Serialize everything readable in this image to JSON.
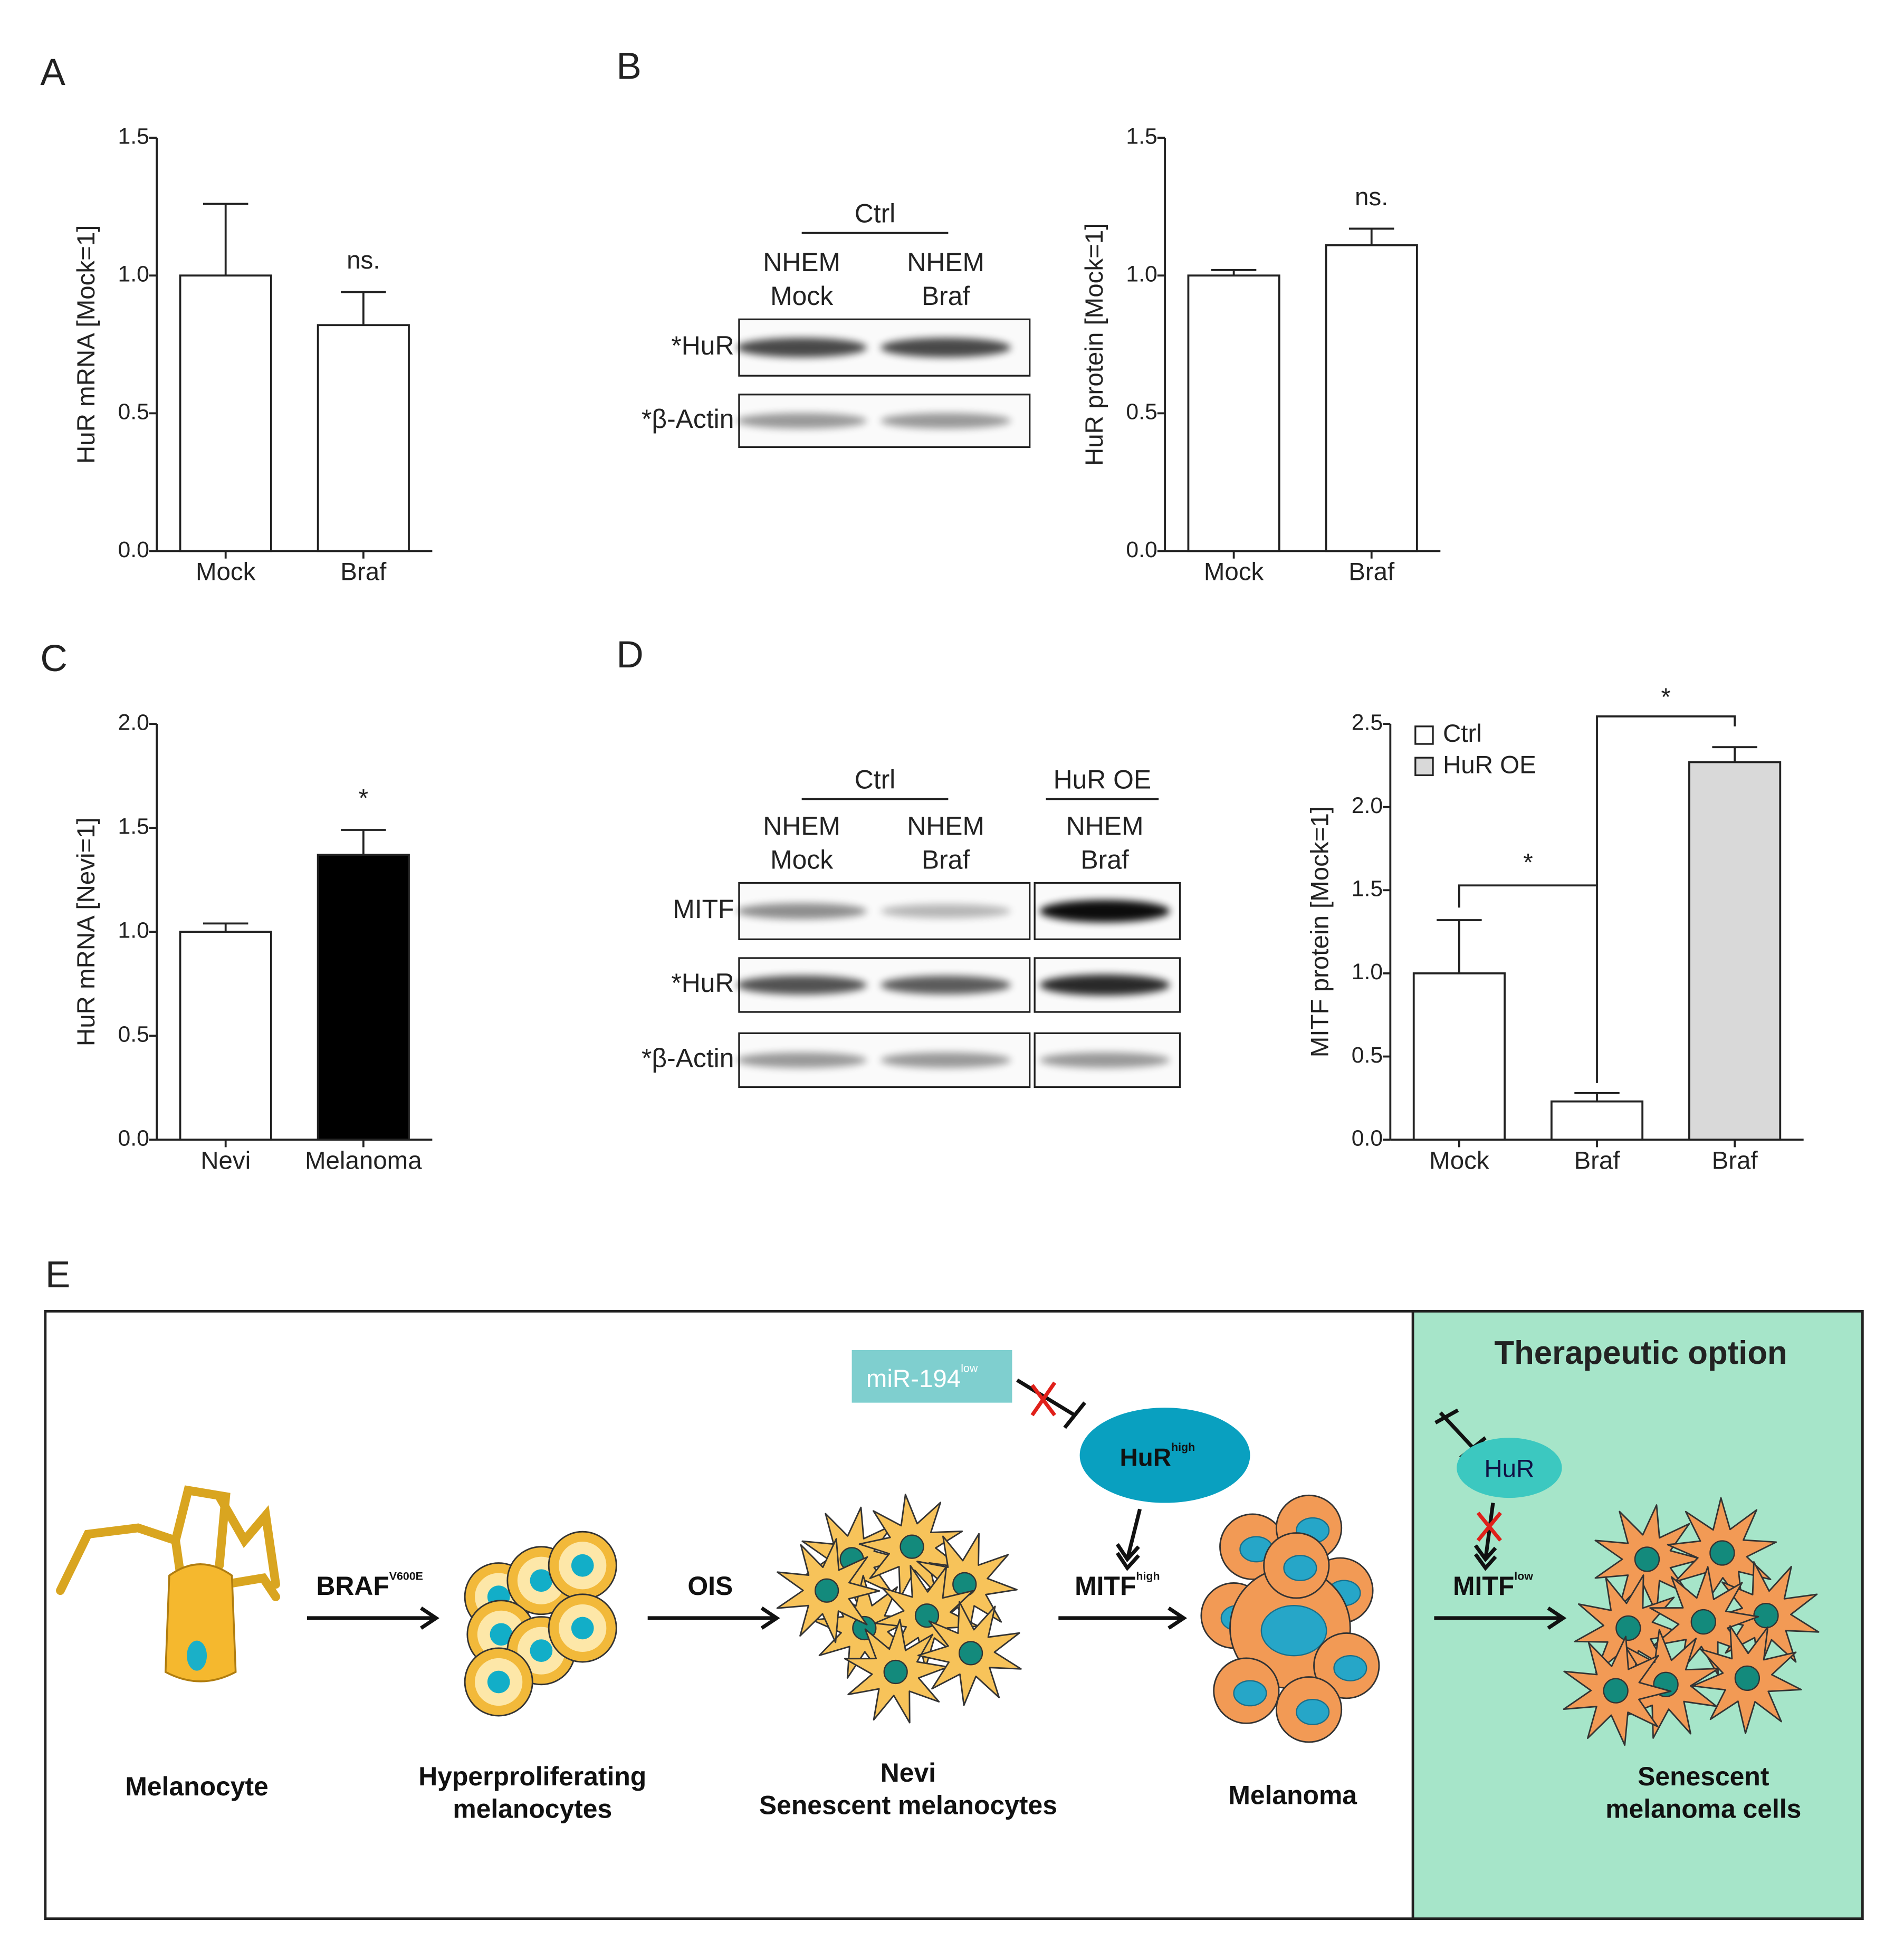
{
  "panels": [
    "A",
    "B",
    "C",
    "D",
    "E"
  ],
  "chart_data": [
    {
      "type": "bar",
      "y_label": "HuR mRNA [Mock=1]",
      "categories": [
        "Mock",
        "Braf"
      ],
      "values": [
        1.0,
        0.82
      ],
      "errors": [
        0.26,
        0.12
      ],
      "color": "#ffffff",
      "ylim": [
        0,
        1.5
      ],
      "yticks": [
        {
          "value": 0,
          "label": "0.0"
        },
        {
          "value": 0.5,
          "label": "0.5"
        },
        {
          "value": 1,
          "label": "1.0"
        },
        {
          "value": 1.5,
          "label": "1.5"
        }
      ],
      "annotations": [
        "ns."
      ]
    },
    {
      "type": "bar",
      "y_label": "HuR protein [Mock=1]",
      "categories": [
        "Mock",
        "Braf"
      ],
      "values": [
        1.0,
        1.11
      ],
      "errors": [
        0.02,
        0.06
      ],
      "color": "#ffffff",
      "ylim": [
        0,
        1.5
      ],
      "yticks": [
        {
          "value": 0,
          "label": "0.0"
        },
        {
          "value": 0.5,
          "label": "0.5"
        },
        {
          "value": 1,
          "label": "1.0"
        },
        {
          "value": 1.5,
          "label": "1.5"
        }
      ],
      "annotations": [
        "ns."
      ]
    },
    {
      "type": "bar",
      "y_label": "HuR mRNA [Nevi=1]",
      "categories": [
        "Nevi",
        "Melanoma"
      ],
      "values": [
        1.0,
        1.37
      ],
      "errors": [
        0.04,
        0.12
      ],
      "colors": [
        "#ffffff",
        "#000000"
      ],
      "ylim": [
        0,
        2
      ],
      "yticks": [
        {
          "value": 0,
          "label": "0.0"
        },
        {
          "value": 0.5,
          "label": "0.5"
        },
        {
          "value": 1,
          "label": "1.0"
        },
        {
          "value": 1.5,
          "label": "1.5"
        },
        {
          "value": 2,
          "label": "2.0"
        }
      ],
      "annotations": [
        "*"
      ]
    },
    {
      "type": "bar",
      "y_label": "MITF protein [Mock=1]",
      "categories": [
        "Mock",
        "Braf",
        "Braf"
      ],
      "series": [
        {
          "name": "Ctrl",
          "color": "#ffffff",
          "values": [
            1.0,
            0.23,
            null
          ],
          "errors": [
            0.32,
            0.05,
            null
          ]
        },
        {
          "name": "HuR OE",
          "color": "#d9d9d9",
          "values": [
            null,
            null,
            2.27
          ],
          "errors": [
            null,
            null,
            0.09
          ]
        }
      ],
      "legend": "upper left",
      "ylim": [
        0,
        2.5
      ],
      "yticks": [
        {
          "value": 0,
          "label": "0.0"
        },
        {
          "value": 0.5,
          "label": "0.5"
        },
        {
          "value": 1,
          "label": "1.0"
        },
        {
          "value": 1.5,
          "label": "1.5"
        },
        {
          "value": 2,
          "label": "2.0"
        },
        {
          "value": 2.5,
          "label": "2.5"
        }
      ],
      "annotations": [
        "*",
        "*"
      ]
    }
  ],
  "blots": [
    {
      "groups": [
        "Ctrl"
      ],
      "lanes": [
        [
          "NHEM",
          "Mock"
        ],
        [
          "NHEM",
          "Braf"
        ]
      ],
      "rows": [
        "*HuR",
        "*β-Actin"
      ]
    },
    {
      "groups": [
        "Ctrl",
        "HuR OE"
      ],
      "lanes": [
        [
          "NHEM",
          "Mock"
        ],
        [
          "NHEM",
          "Braf"
        ],
        [
          "NHEM",
          "Braf"
        ]
      ],
      "rows": [
        "MITF",
        "*HuR",
        "*β-Actin"
      ]
    }
  ],
  "diagram": {
    "title": "Therapeutic option",
    "arrows": [
      {
        "label": "BRAF",
        "sup": "V600E"
      },
      {
        "label": "OIS"
      },
      {
        "label": "MITF",
        "sup": "high"
      },
      {
        "label": "MITF",
        "sup": "low"
      }
    ],
    "mir": {
      "label": "miR-194",
      "sup": "low"
    },
    "hur_high": {
      "label": "HuR",
      "sup": "high"
    },
    "hur": "HuR",
    "stages": [
      [
        "Melanocyte"
      ],
      [
        "Hyperproliferating",
        "melanocytes"
      ],
      [
        "Nevi",
        "Senescent melanocytes"
      ],
      [
        "Melanoma"
      ],
      [
        "Senescent",
        "melanoma cells"
      ]
    ]
  }
}
